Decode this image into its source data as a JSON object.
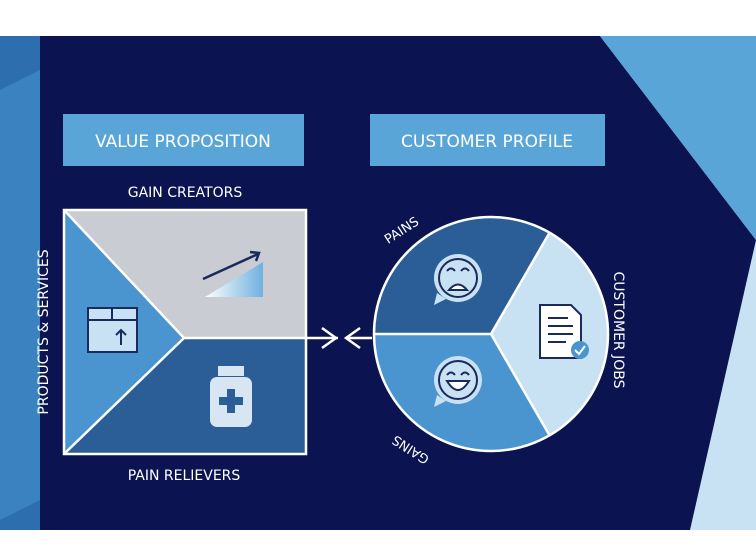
{
  "value_proposition": {
    "title": "VALUE PROPOSITION",
    "gain_creators": "GAIN CREATORS",
    "pain_relievers": "PAIN RELIEVERS",
    "products_services": "PRODUCTS & SERVICES"
  },
  "customer_profile": {
    "title": "CUSTOMER PROFILE",
    "pains": "PAINS",
    "gains": "GAINS",
    "customer_jobs": "CUSTOMER JOBS"
  },
  "colors": {
    "navy": "#0b1450",
    "accent": "#5aa5d8",
    "gray": "#c9ccd2",
    "mid_blue": "#2b5d96",
    "light_blue": "#c8e1f3"
  }
}
